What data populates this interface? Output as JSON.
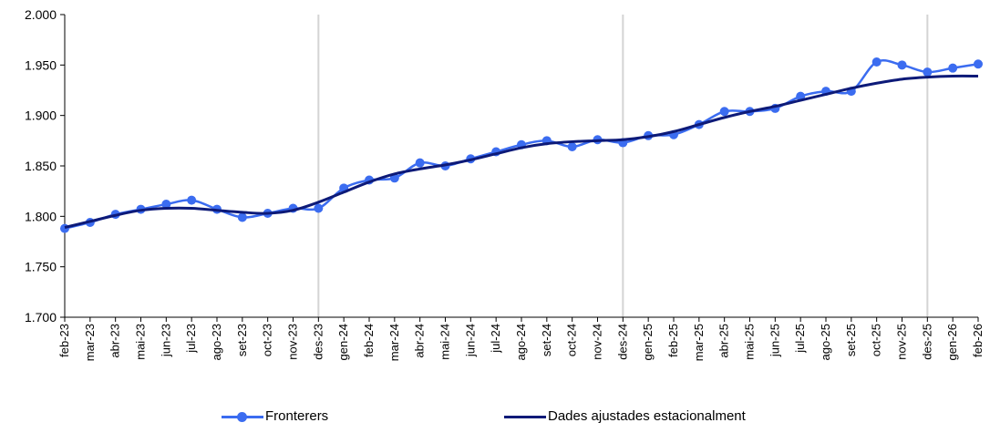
{
  "chart_data": {
    "type": "line",
    "categories": [
      "feb-23",
      "mar-23",
      "abr-23",
      "mai-23",
      "jun-23",
      "jul-23",
      "ago-23",
      "set-23",
      "oct-23",
      "nov-23",
      "des-23",
      "gen-24",
      "feb-24",
      "mar-24",
      "abr-24",
      "mai-24",
      "jun-24",
      "jul-24",
      "ago-24",
      "set-24",
      "oct-24",
      "nov-24",
      "des-24",
      "gen-25",
      "feb-25",
      "mar-25",
      "abr-25",
      "mai-25",
      "jun-25",
      "jul-25",
      "ago-25",
      "set-25",
      "oct-25",
      "nov-25",
      "des-25",
      "gen-26",
      "feb-26"
    ],
    "series": [
      {
        "name": "Fronterers",
        "color": "#3b6cf0",
        "marker": "circle",
        "values": [
          1.788,
          1.794,
          1.802,
          1.807,
          1.812,
          1.816,
          1.807,
          1.799,
          1.803,
          1.808,
          1.808,
          1.828,
          1.836,
          1.838,
          1.853,
          1.85,
          1.857,
          1.864,
          1.871,
          1.875,
          1.869,
          1.876,
          1.873,
          1.88,
          1.881,
          1.891,
          1.904,
          1.904,
          1.907,
          1.919,
          1.924,
          1.924,
          1.953,
          1.95,
          1.943,
          1.947,
          1.951
        ]
      },
      {
        "name": "Dades ajustades estacionalment",
        "color": "#0d1a78",
        "marker": "none",
        "values": [
          1.789,
          1.795,
          1.801,
          1.806,
          1.808,
          1.808,
          1.806,
          1.804,
          1.803,
          1.806,
          1.814,
          1.824,
          1.834,
          1.842,
          1.847,
          1.851,
          1.856,
          1.862,
          1.868,
          1.872,
          1.874,
          1.875,
          1.876,
          1.879,
          1.884,
          1.891,
          1.898,
          1.904,
          1.909,
          1.915,
          1.921,
          1.927,
          1.932,
          1.936,
          1.938,
          1.939,
          1.939
        ]
      }
    ],
    "y_ticks": [
      "2.000",
      "1.950",
      "1.900",
      "1.850",
      "1.800",
      "1.750",
      "1.700"
    ],
    "ylim": [
      1.7,
      2.0
    ],
    "year_separators_after": [
      "des-23",
      "des-24",
      "des-25"
    ],
    "legend_position": "bottom",
    "grid": false
  }
}
